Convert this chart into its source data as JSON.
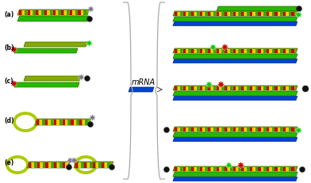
{
  "background": "#ffffff",
  "left_labels": [
    "(a)",
    "(b)",
    "(c)",
    "(d)",
    "(e)"
  ],
  "mrna_label": "mRNA",
  "green_color": "#22bb00",
  "dark_green": "#1a8800",
  "olive_green": "#88aa00",
  "blue_color": "#0044cc",
  "red_color": "#cc0000",
  "yellow_color": "#ffcc00",
  "black_color": "#000000",
  "gray_color": "#777788",
  "lime_color": "#aacc00",
  "bright_green": "#00cc00",
  "strand_dark_green": "#336600"
}
